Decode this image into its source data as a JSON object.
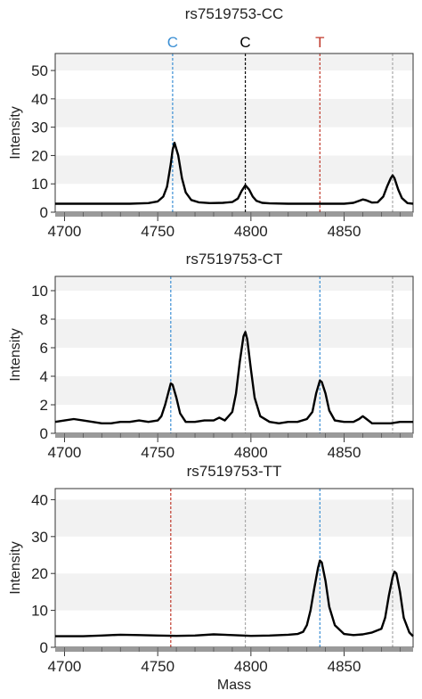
{
  "chart_data": [
    {
      "type": "line",
      "title": "rs7519753-CC",
      "xlabel": "",
      "ylabel": "Intensity",
      "xlim": [
        4695,
        4887
      ],
      "ylim": [
        0,
        56
      ],
      "xticks": [
        4700,
        4750,
        4800,
        4850
      ],
      "yticks": [
        0,
        10,
        20,
        30,
        40,
        50
      ],
      "markers": [
        {
          "label": "C",
          "x": 4758,
          "color": "#3b8fd4"
        },
        {
          "label": "C",
          "x": 4797,
          "color": "#000000"
        },
        {
          "label": "T",
          "x": 4837,
          "color": "#c0392b"
        },
        {
          "label": "",
          "x": 4876,
          "color": "#aaaaaa"
        }
      ],
      "series": [
        {
          "x": [
            4695,
            4710,
            4725,
            4735,
            4745,
            4750,
            4753,
            4755,
            4757,
            4758,
            4759,
            4761,
            4763,
            4765,
            4768,
            4772,
            4778,
            4785,
            4790,
            4793,
            4795,
            4797,
            4799,
            4801,
            4803,
            4806,
            4810,
            4820,
            4830,
            4840,
            4850,
            4855,
            4858,
            4860,
            4862,
            4865,
            4868,
            4871,
            4873,
            4875,
            4876,
            4877,
            4879,
            4881,
            4884,
            4887
          ],
          "y": [
            3,
            3,
            3,
            3,
            3.2,
            3.8,
            5.5,
            9,
            17,
            22,
            24.5,
            20,
            12,
            7,
            4.3,
            3.5,
            3.2,
            3.3,
            3.6,
            4.8,
            7.5,
            9.5,
            8,
            5.5,
            4,
            3.3,
            3.1,
            3,
            3,
            3,
            3,
            3.3,
            4,
            4.5,
            4.2,
            3.4,
            3.5,
            5.5,
            9,
            12,
            13,
            12,
            8,
            5,
            3.2,
            3
          ]
        }
      ]
    },
    {
      "type": "line",
      "title": "rs7519753-CT",
      "xlabel": "",
      "ylabel": "Intensity",
      "xlim": [
        4695,
        4887
      ],
      "ylim": [
        0,
        11
      ],
      "xticks": [
        4700,
        4750,
        4800,
        4850
      ],
      "yticks": [
        0,
        2,
        4,
        6,
        8,
        10
      ],
      "markers": [
        {
          "label": "",
          "x": 4757,
          "color": "#3b8fd4"
        },
        {
          "label": "",
          "x": 4797,
          "color": "#aaaaaa"
        },
        {
          "label": "",
          "x": 4837,
          "color": "#3b8fd4"
        },
        {
          "label": "",
          "x": 4876,
          "color": "#aaaaaa"
        }
      ],
      "series": [
        {
          "x": [
            4695,
            4700,
            4705,
            4710,
            4715,
            4720,
            4725,
            4730,
            4735,
            4740,
            4745,
            4750,
            4752,
            4754,
            4756,
            4757,
            4758,
            4760,
            4762,
            4765,
            4770,
            4775,
            4780,
            4783,
            4786,
            4790,
            4792,
            4794,
            4796,
            4797,
            4798,
            4800,
            4802,
            4805,
            4810,
            4815,
            4820,
            4825,
            4830,
            4833,
            4835,
            4837,
            4838,
            4840,
            4842,
            4845,
            4850,
            4855,
            4858,
            4860,
            4862,
            4865,
            4870,
            4875,
            4880,
            4885,
            4887
          ],
          "y": [
            0.8,
            0.9,
            1.0,
            0.9,
            0.8,
            0.7,
            0.7,
            0.8,
            0.8,
            0.9,
            0.8,
            0.9,
            1.2,
            2.0,
            3.0,
            3.5,
            3.4,
            2.5,
            1.4,
            0.8,
            0.8,
            0.9,
            0.9,
            1.1,
            0.9,
            1.5,
            2.8,
            5.0,
            6.8,
            7.1,
            6.6,
            4.5,
            2.5,
            1.2,
            0.8,
            0.7,
            0.8,
            0.8,
            1.0,
            1.5,
            2.8,
            3.7,
            3.6,
            2.8,
            1.6,
            0.9,
            0.8,
            0.8,
            1.0,
            1.2,
            1.0,
            0.7,
            0.7,
            0.7,
            0.8,
            0.8,
            0.8
          ]
        }
      ]
    },
    {
      "type": "line",
      "title": "rs7519753-TT",
      "xlabel": "Mass",
      "ylabel": "Intensity",
      "xlim": [
        4695,
        4887
      ],
      "ylim": [
        0,
        43
      ],
      "xticks": [
        4700,
        4750,
        4800,
        4850
      ],
      "yticks": [
        0,
        10,
        20,
        30,
        40
      ],
      "markers": [
        {
          "label": "",
          "x": 4757,
          "color": "#c0392b"
        },
        {
          "label": "",
          "x": 4797,
          "color": "#aaaaaa"
        },
        {
          "label": "",
          "x": 4837,
          "color": "#3b8fd4"
        },
        {
          "label": "",
          "x": 4876,
          "color": "#aaaaaa"
        }
      ],
      "series": [
        {
          "x": [
            4695,
            4700,
            4710,
            4720,
            4730,
            4740,
            4750,
            4760,
            4770,
            4780,
            4790,
            4800,
            4810,
            4820,
            4825,
            4828,
            4830,
            4832,
            4834,
            4836,
            4837,
            4838,
            4840,
            4842,
            4845,
            4850,
            4855,
            4860,
            4865,
            4870,
            4872,
            4874,
            4876,
            4877,
            4878,
            4880,
            4882,
            4885,
            4887
          ],
          "y": [
            3,
            3,
            3,
            3.2,
            3.4,
            3.3,
            3.2,
            3.1,
            3.2,
            3.5,
            3.3,
            3.1,
            3.2,
            3.4,
            3.6,
            4.2,
            6,
            10,
            16,
            21.5,
            23.5,
            23,
            18,
            11,
            6,
            3.6,
            3.3,
            3.5,
            4,
            5,
            8,
            14,
            19,
            20.5,
            20,
            15,
            8,
            4,
            3
          ]
        }
      ]
    }
  ]
}
